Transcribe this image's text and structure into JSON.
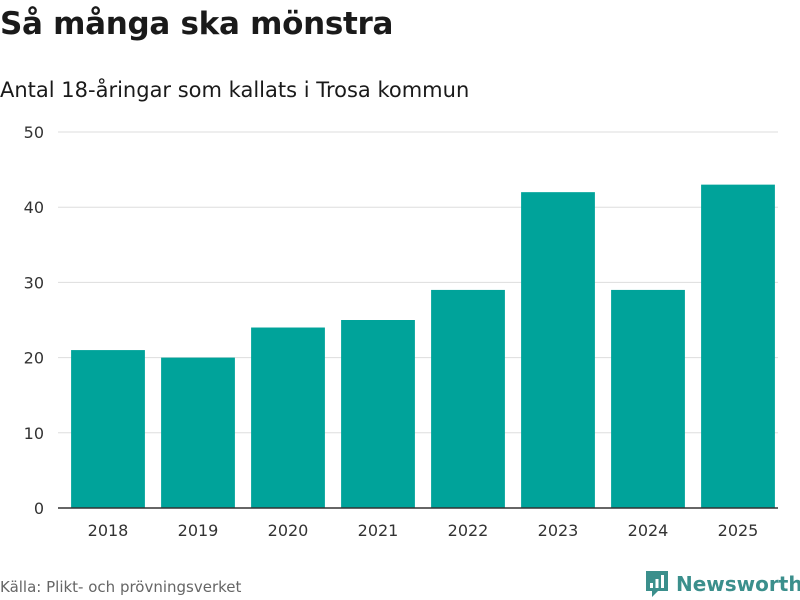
{
  "title": "Så många ska mönstra",
  "subtitle": "Antal 18-åringar som kallats i Trosa kommun",
  "source": "Källa: Plikt- och prövningsverket",
  "brand": {
    "name": "Newsworthy",
    "logo_icon": "newsworthy-logo-icon",
    "color": "#3b8f8c"
  },
  "colors": {
    "bar": "#00a39a",
    "grid": "#dddddd",
    "axis": "#333333",
    "tick_text": "#333333"
  },
  "chart_data": {
    "type": "bar",
    "title": "Så många ska mönstra",
    "subtitle": "Antal 18-åringar som kallats i Trosa kommun",
    "xlabel": "",
    "ylabel": "",
    "categories": [
      "2018",
      "2019",
      "2020",
      "2021",
      "2022",
      "2023",
      "2024",
      "2025"
    ],
    "values": [
      21,
      20,
      24,
      25,
      29,
      42,
      29,
      43
    ],
    "ylim": [
      0,
      50
    ],
    "yticks": [
      0,
      10,
      20,
      30,
      40,
      50
    ],
    "grid": true,
    "legend": "none"
  }
}
